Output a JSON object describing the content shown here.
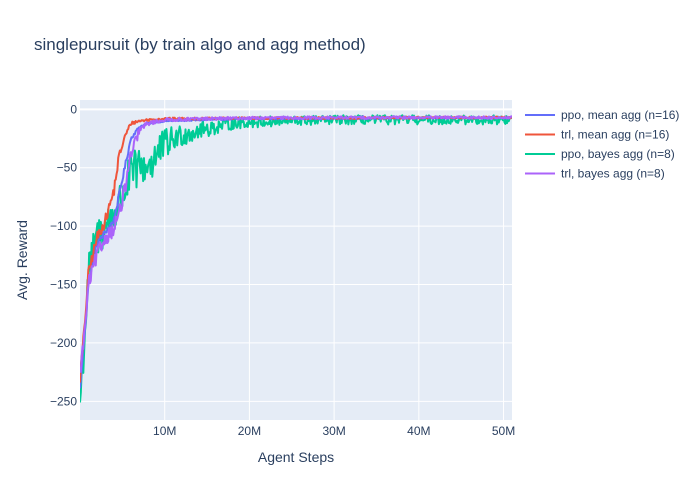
{
  "chart_data": {
    "type": "line",
    "title": "singlepursuit (by train algo and agg method)",
    "xlabel": "Agent Steps",
    "ylabel": "Avg. Reward",
    "xlim": [
      0,
      51000000
    ],
    "ylim": [
      -266,
      8
    ],
    "x_ticks": [
      10000000,
      20000000,
      30000000,
      40000000,
      50000000
    ],
    "x_tick_labels": [
      "10M",
      "20M",
      "30M",
      "40M",
      "50M"
    ],
    "y_ticks": [
      0,
      -50,
      -100,
      -150,
      -200,
      -250
    ],
    "y_tick_labels": [
      "0",
      "−50",
      "−100",
      "−150",
      "−200",
      "−250"
    ],
    "grid": true,
    "legend_position": "right",
    "series": [
      {
        "name": "ppo, mean agg (n=16)",
        "color": "#636efa",
        "noise": 1.5,
        "x": [
          0,
          500000,
          1000000,
          2000000,
          3000000,
          4000000,
          5000000,
          6000000,
          7000000,
          8000000,
          10000000,
          15000000,
          20000000,
          30000000,
          40000000,
          51000000
        ],
        "y": [
          -240,
          -195,
          -150,
          -115,
          -105,
          -95,
          -60,
          -25,
          -15,
          -12,
          -10,
          -9,
          -8,
          -8,
          -7.5,
          -7
        ]
      },
      {
        "name": "trl, mean agg (n=16)",
        "color": "#ef553b",
        "noise": 3,
        "x": [
          0,
          500000,
          1000000,
          2000000,
          3000000,
          4000000,
          4500000,
          5000000,
          5500000,
          6000000,
          7000000,
          8000000,
          10000000,
          15000000,
          20000000,
          30000000,
          40000000,
          51000000
        ],
        "y": [
          -230,
          -190,
          -140,
          -110,
          -95,
          -70,
          -45,
          -30,
          -20,
          -12,
          -10,
          -9,
          -8,
          -8,
          -7.5,
          -7.5,
          -7,
          -7
        ]
      },
      {
        "name": "ppo, bayes agg (n=8)",
        "color": "#00cc96",
        "noise": 11,
        "x": [
          0,
          500000,
          1000000,
          2000000,
          3000000,
          4000000,
          5000000,
          6000000,
          7000000,
          8000000,
          9000000,
          10000000,
          12000000,
          14000000,
          16000000,
          18000000,
          20000000,
          25000000,
          30000000,
          40000000,
          51000000
        ],
        "y": [
          -250,
          -200,
          -140,
          -110,
          -100,
          -90,
          -75,
          -55,
          -50,
          -48,
          -40,
          -30,
          -22,
          -18,
          -15,
          -12,
          -11,
          -10,
          -9,
          -9,
          -9
        ]
      },
      {
        "name": "trl, bayes agg (n=8)",
        "color": "#ab63fa",
        "noise": 4,
        "x": [
          0,
          500000,
          1000000,
          2000000,
          3000000,
          4000000,
          5000000,
          6000000,
          7000000,
          8000000,
          10000000,
          15000000,
          20000000,
          30000000,
          40000000,
          51000000
        ],
        "y": [
          -225,
          -195,
          -150,
          -125,
          -110,
          -102,
          -80,
          -40,
          -18,
          -12,
          -9,
          -8,
          -7.5,
          -7,
          -7,
          -7
        ]
      }
    ]
  }
}
